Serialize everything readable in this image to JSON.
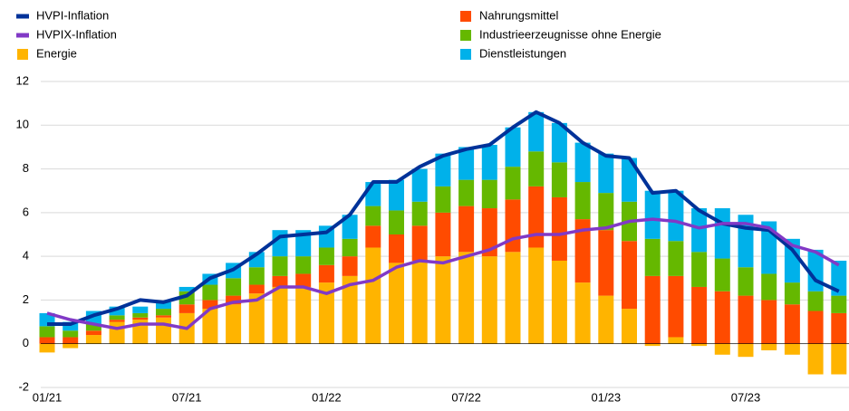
{
  "chart_data": {
    "type": "stacked-bar-line",
    "categories": [
      "01/21",
      null,
      null,
      null,
      null,
      null,
      "07/21",
      null,
      null,
      null,
      null,
      null,
      "01/22",
      null,
      null,
      null,
      null,
      null,
      "07/22",
      null,
      null,
      null,
      null,
      null,
      "01/23",
      null,
      null,
      null,
      null,
      null,
      "07/23",
      null,
      null,
      null,
      null
    ],
    "ylim": [
      -2,
      12
    ],
    "yticks": [
      -2,
      0,
      2,
      4,
      6,
      8,
      10,
      12
    ],
    "grid": true,
    "series": [
      {
        "name": "HVPI-Inflation",
        "kind": "line",
        "color": "#003299",
        "values": [
          0.9,
          0.9,
          1.3,
          1.6,
          2.0,
          1.9,
          2.2,
          3.0,
          3.4,
          4.1,
          4.9,
          5.0,
          5.1,
          5.9,
          7.4,
          7.4,
          8.1,
          8.6,
          8.9,
          9.1,
          9.9,
          10.6,
          10.1,
          9.2,
          8.6,
          8.5,
          6.9,
          7.0,
          6.1,
          5.5,
          5.3,
          5.2,
          4.3,
          2.9,
          2.4
        ]
      },
      {
        "name": "HVPIX-Inflation",
        "kind": "line",
        "color": "#8139c6",
        "values": [
          1.4,
          1.1,
          0.9,
          0.7,
          0.9,
          0.9,
          0.7,
          1.6,
          1.9,
          2.0,
          2.6,
          2.6,
          2.3,
          2.7,
          2.9,
          3.5,
          3.8,
          3.7,
          4.0,
          4.3,
          4.8,
          5.0,
          5.0,
          5.2,
          5.3,
          5.6,
          5.7,
          5.6,
          5.3,
          5.5,
          5.5,
          5.3,
          4.5,
          4.2,
          3.6
        ]
      },
      {
        "name": "Energie",
        "kind": "bar",
        "color": "#ffb400",
        "values": [
          -0.4,
          -0.2,
          0.4,
          1.0,
          1.1,
          1.2,
          1.4,
          1.6,
          1.8,
          2.3,
          2.6,
          2.6,
          2.8,
          3.1,
          4.4,
          3.7,
          3.8,
          4.0,
          4.2,
          4.0,
          4.2,
          4.4,
          3.8,
          2.8,
          2.2,
          1.6,
          -0.1,
          0.3,
          -0.1,
          -0.5,
          -0.6,
          -0.3,
          -0.5,
          -1.4,
          -1.4
        ]
      },
      {
        "name": "Nahrungsmittel",
        "kind": "bar",
        "color": "#ff4b00",
        "values": [
          0.3,
          0.3,
          0.2,
          0.1,
          0.1,
          0.1,
          0.4,
          0.4,
          0.4,
          0.4,
          0.5,
          0.6,
          0.8,
          0.9,
          1.0,
          1.3,
          1.6,
          2.0,
          2.1,
          2.2,
          2.4,
          2.8,
          2.9,
          2.9,
          3.0,
          3.1,
          3.1,
          2.8,
          2.6,
          2.4,
          2.2,
          2.0,
          1.8,
          1.5,
          1.4
        ]
      },
      {
        "name": "Industrieerzeugnisse ohne Energie",
        "kind": "bar",
        "color": "#65b800",
        "values": [
          0.5,
          0.3,
          0.3,
          0.2,
          0.2,
          0.3,
          0.6,
          0.7,
          0.8,
          0.8,
          0.9,
          0.8,
          0.8,
          0.8,
          0.9,
          1.1,
          1.1,
          1.2,
          1.2,
          1.3,
          1.5,
          1.6,
          1.6,
          1.7,
          1.7,
          1.8,
          1.7,
          1.6,
          1.6,
          1.5,
          1.3,
          1.2,
          1.0,
          0.9,
          0.8
        ]
      },
      {
        "name": "Dienstleistungen",
        "kind": "bar",
        "color": "#00b1ea",
        "values": [
          0.6,
          0.4,
          0.6,
          0.4,
          0.3,
          0.3,
          0.2,
          0.5,
          0.7,
          0.7,
          1.2,
          1.2,
          1.0,
          1.1,
          1.1,
          1.4,
          1.5,
          1.5,
          1.5,
          1.6,
          1.8,
          1.8,
          1.8,
          1.8,
          1.8,
          2.0,
          2.2,
          2.3,
          2.0,
          2.3,
          2.4,
          2.4,
          2.0,
          1.9,
          1.6
        ]
      }
    ]
  }
}
